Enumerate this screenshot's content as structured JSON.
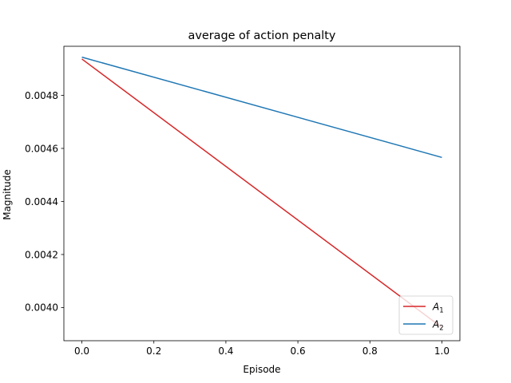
{
  "chart_data": {
    "type": "line",
    "title": "average of action penalty",
    "xlabel": "Episode",
    "ylabel": "Magnitude",
    "xlim": [
      -0.05,
      1.05
    ],
    "ylim": [
      0.003875,
      0.004985
    ],
    "xticks": [
      0.0,
      0.2,
      0.4,
      0.6,
      0.8,
      1.0
    ],
    "xtick_labels": [
      "0.0",
      "0.2",
      "0.4",
      "0.6",
      "0.8",
      "1.0"
    ],
    "yticks": [
      0.004,
      0.0042,
      0.0044,
      0.0046,
      0.0048
    ],
    "ytick_labels": [
      "0.0040",
      "0.0042",
      "0.0044",
      "0.0046",
      "0.0048"
    ],
    "grid": false,
    "legend_position": "lower-right",
    "series": [
      {
        "name": "A1",
        "label_base": "A",
        "label_sub": "1",
        "color": "#d62728",
        "x": [
          0.0,
          1.0
        ],
        "y": [
          0.004937,
          0.003925
        ]
      },
      {
        "name": "A2",
        "label_base": "A",
        "label_sub": "2",
        "color": "#1f77b4",
        "x": [
          0.0,
          1.0
        ],
        "y": [
          0.004944,
          0.004566
        ]
      }
    ]
  }
}
